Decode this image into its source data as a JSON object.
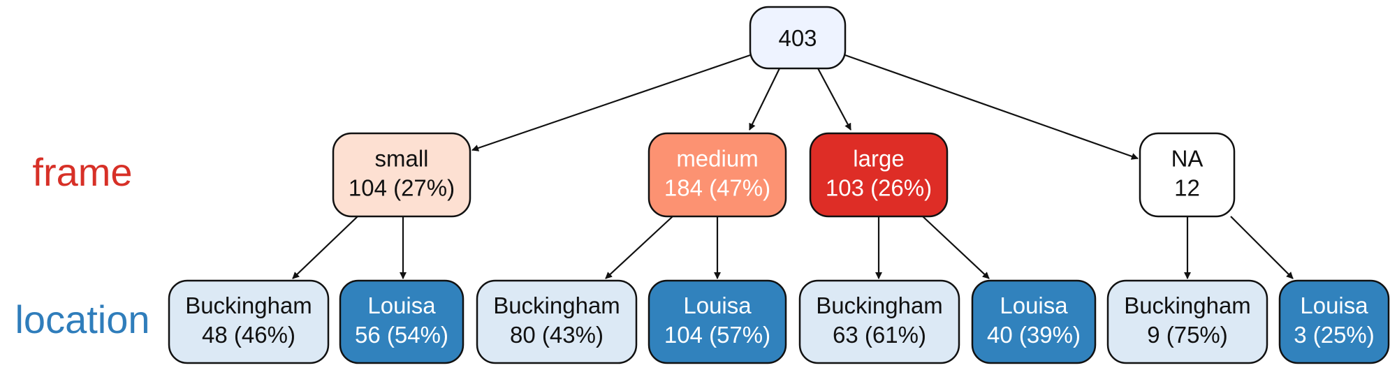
{
  "levels": [
    {
      "label": "frame",
      "color": "#d73027"
    },
    {
      "label": "location",
      "color": "#2f7dbb"
    }
  ],
  "root": {
    "line1": "403",
    "fill": "#eef3ff",
    "text_color": "#111111"
  },
  "frame_nodes": [
    {
      "id": "small",
      "line1": "small",
      "line2": "104 (27%)",
      "fill": "#fde0d2",
      "text_color": "#111111"
    },
    {
      "id": "medium",
      "line1": "medium",
      "line2": "184 (47%)",
      "fill": "#fc9272",
      "text_color": "#ffffff"
    },
    {
      "id": "large",
      "line1": "large",
      "line2": "103 (26%)",
      "fill": "#de2d26",
      "text_color": "#ffffff"
    },
    {
      "id": "na",
      "line1": "NA",
      "line2": "12",
      "fill": "#ffffff",
      "text_color": "#111111"
    }
  ],
  "location_nodes": [
    {
      "parent": "small",
      "line1": "Buckingham",
      "line2": "48 (46%)",
      "fill": "#dce9f5",
      "text_color": "#111111"
    },
    {
      "parent": "small",
      "line1": "Louisa",
      "line2": "56 (54%)",
      "fill": "#3182bd",
      "text_color": "#ffffff"
    },
    {
      "parent": "medium",
      "line1": "Buckingham",
      "line2": "80 (43%)",
      "fill": "#dce9f5",
      "text_color": "#111111"
    },
    {
      "parent": "medium",
      "line1": "Louisa",
      "line2": "104 (57%)",
      "fill": "#3182bd",
      "text_color": "#ffffff"
    },
    {
      "parent": "large",
      "line1": "Buckingham",
      "line2": "63 (61%)",
      "fill": "#dce9f5",
      "text_color": "#111111"
    },
    {
      "parent": "large",
      "line1": "Louisa",
      "line2": "40 (39%)",
      "fill": "#3182bd",
      "text_color": "#ffffff"
    },
    {
      "parent": "na",
      "line1": "Buckingham",
      "line2": "9 (75%)",
      "fill": "#dce9f5",
      "text_color": "#111111"
    },
    {
      "parent": "na",
      "line1": "Louisa",
      "line2": "3 (25%)",
      "fill": "#3182bd",
      "text_color": "#ffffff"
    }
  ]
}
